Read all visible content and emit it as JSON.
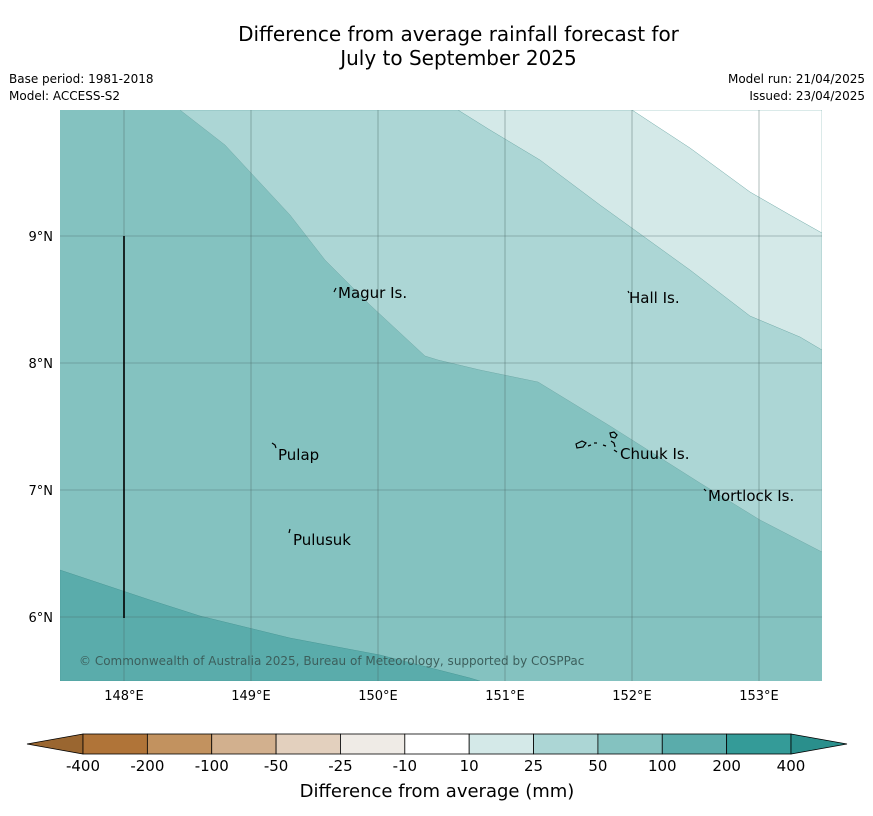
{
  "title": {
    "line1": "Difference from average rainfall forecast for",
    "line2": "July to September 2025"
  },
  "meta": {
    "base_period": "Base period: 1981-2018",
    "model": "Model: ACCESS-S2",
    "model_run": "Model run: 21/04/2025",
    "issued": "Issued: 23/04/2025"
  },
  "map": {
    "x_ticks": [
      "148°E",
      "149°E",
      "150°E",
      "151°E",
      "152°E",
      "153°E"
    ],
    "y_ticks": [
      "9°N",
      "8°N",
      "7°N",
      "6°N"
    ],
    "places": {
      "magur": "Magur Is.",
      "hall": "Hall Is.",
      "pulap": "Pulap",
      "chuuk": "Chuuk Is.",
      "mortlock": "Mortlock Is.",
      "pulusuk": "Pulusuk"
    },
    "copyright": "© Commonwealth of Australia 2025, Bureau of Meteorology, supported by COSPPac"
  },
  "colorbar": {
    "title": "Difference from average (mm)",
    "labels": [
      "-400",
      "-200",
      "-100",
      "-50",
      "-25",
      "-10",
      "10",
      "25",
      "50",
      "100",
      "200",
      "400"
    ],
    "colors": {
      "extend_low": "#9a6630",
      "bins": [
        "#b07438",
        "#c2925f",
        "#d2b08e",
        "#e3d0be",
        "#efebe6",
        "#ffffff",
        "#d4e9e8",
        "#acd6d5",
        "#84c2c0",
        "#5aacab",
        "#349b98"
      ],
      "extend_high": "#2a8f8c"
    }
  }
}
